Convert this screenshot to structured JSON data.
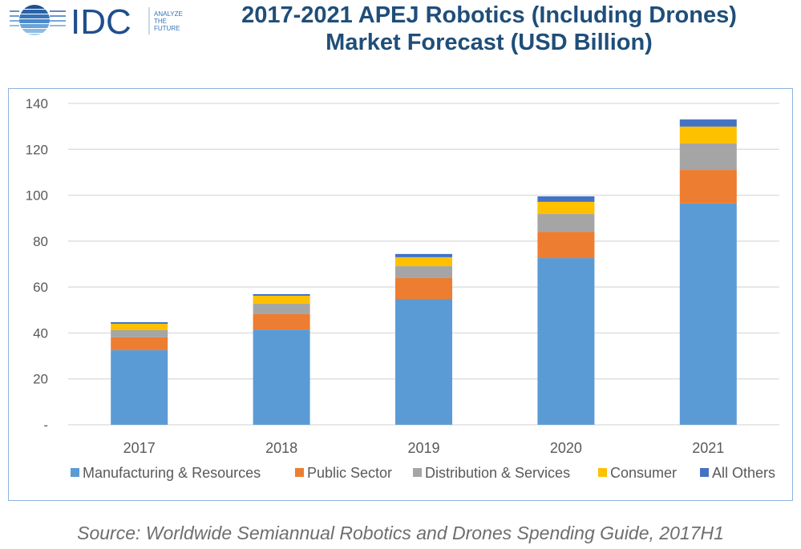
{
  "logo": {
    "name": "IDC",
    "tagline": [
      "ANALYZE",
      "THE",
      "FUTURE"
    ],
    "icon": "idc-globe-icon"
  },
  "header": {
    "title_line1": "2017-2021 APEJ Robotics (Including Drones)",
    "title_line2": "Market Forecast (USD Billion)"
  },
  "source": "Source: Worldwide Semiannual Robotics and Drones Spending Guide, 2017H1",
  "colors": {
    "title": "#1F4E79",
    "manufacturing": "#5B9BD5",
    "public_sector": "#ED7D31",
    "distribution": "#A5A5A5",
    "consumer": "#FFC000",
    "all_others": "#4472C4"
  },
  "chart_data": {
    "type": "bar",
    "stacked": true,
    "title": "2017-2021 APEJ Robotics (Including Drones) Market Forecast (USD Billion)",
    "xlabel": "",
    "ylabel": "",
    "categories": [
      "2017",
      "2018",
      "2019",
      "2020",
      "2021"
    ],
    "ylim": [
      0,
      140
    ],
    "yticks": [
      0,
      20,
      40,
      60,
      80,
      100,
      120,
      140
    ],
    "ytick_labels": [
      "-",
      "20",
      "40",
      "60",
      "80",
      "100",
      "120",
      "140"
    ],
    "grid": true,
    "legend_position": "bottom",
    "series": [
      {
        "name": "Manufacturing & Resources",
        "color": "#5B9BD5",
        "values": [
          32.5,
          41.5,
          54.8,
          72.6,
          96.4
        ]
      },
      {
        "name": "Public Sector",
        "color": "#ED7D31",
        "values": [
          5.6,
          6.7,
          9.1,
          11.5,
          14.6
        ]
      },
      {
        "name": "Distribution & Services",
        "color": "#A5A5A5",
        "values": [
          3.1,
          4.5,
          5.2,
          7.7,
          11.6
        ]
      },
      {
        "name": "Consumer",
        "color": "#FFC000",
        "values": [
          2.8,
          3.5,
          3.9,
          5.3,
          7.3
        ]
      },
      {
        "name": "All Others",
        "color": "#4472C4",
        "values": [
          0.7,
          0.7,
          1.4,
          2.4,
          3.1
        ]
      }
    ]
  }
}
